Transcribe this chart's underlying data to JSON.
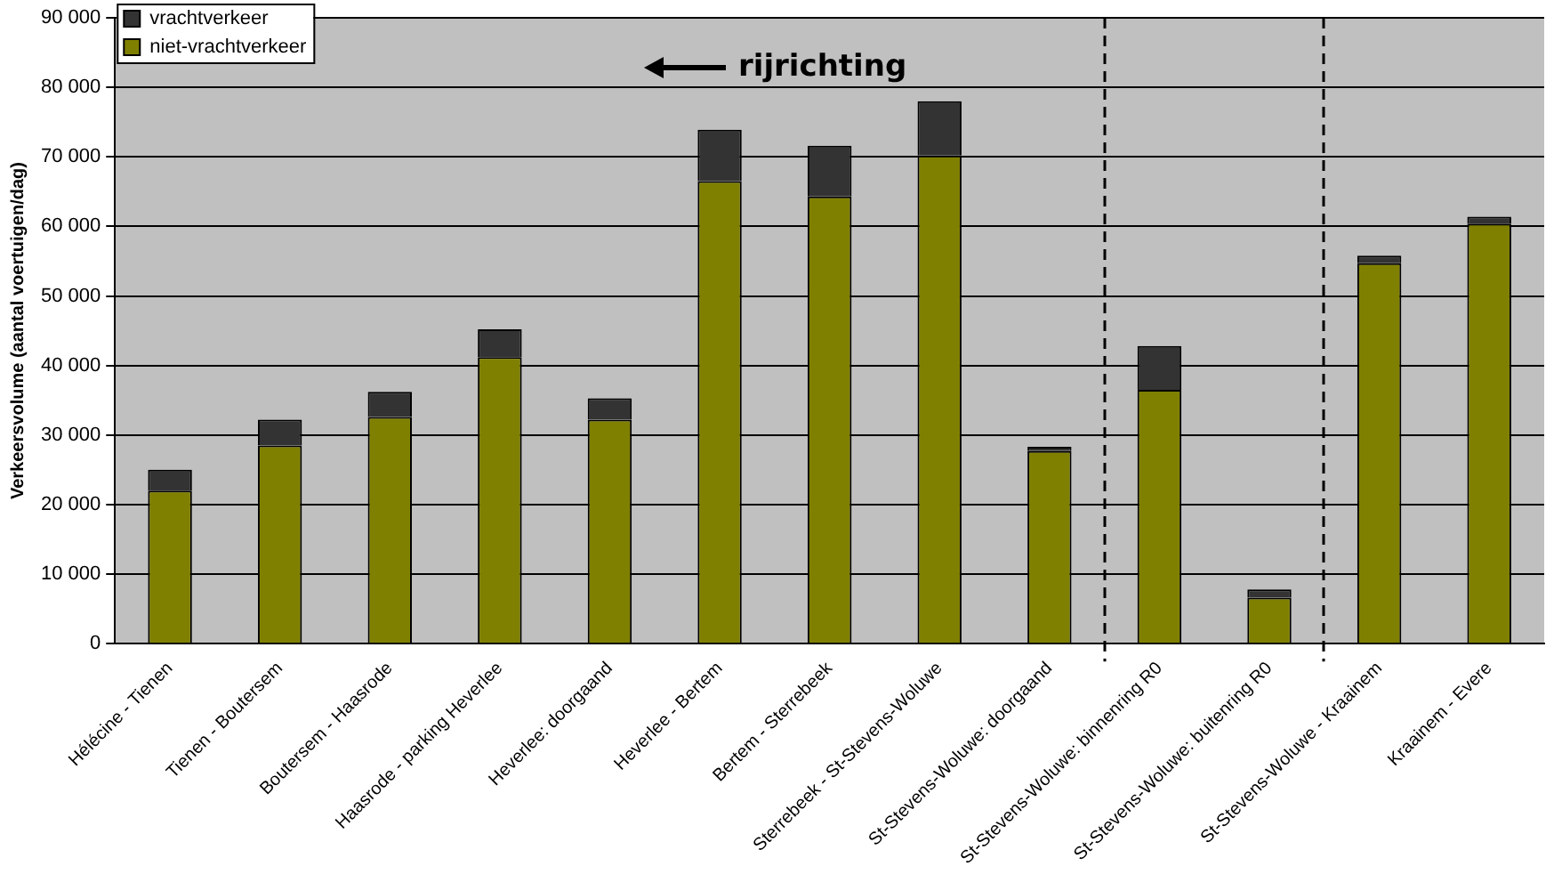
{
  "chart_data": {
    "type": "bar",
    "stacked": true,
    "ylabel": "Verkeersvolume (aantal voertuigen/dag)",
    "categories": [
      "Hélécine - Tienen",
      "Tienen - Boutersem",
      "Boutersem - Haasrode",
      "Haasrode - parking Heverlee",
      "Heverlee: doorgaand",
      "Heverlee - Bertem",
      "Bertem - Sterrebeek",
      "Sterrebeek - St-Stevens-Woluwe",
      "St-Stevens-Woluwe: doorgaand",
      "St-Stevens-Woluwe: binnenring R0",
      "St-Stevens-Woluwe: buitenring R0",
      "St-Stevens-Woluwe - Kraainem",
      "Kraainem - Evere"
    ],
    "series": [
      {
        "name": "niet-vrachtverkeer",
        "color": "#808000",
        "values": [
          22000,
          28500,
          32600,
          41200,
          32200,
          66500,
          64300,
          70200,
          27700,
          36500,
          6600,
          54700,
          60400
        ]
      },
      {
        "name": "vrachtverkeer",
        "color": "#333333",
        "values": [
          3000,
          3700,
          3600,
          4000,
          3100,
          7400,
          7300,
          7800,
          600,
          6300,
          1200,
          1100,
          1000
        ]
      }
    ],
    "ylim": [
      0,
      90000
    ],
    "yticks": [
      {
        "value": 0,
        "label": "0"
      },
      {
        "value": 10000,
        "label": "10 000"
      },
      {
        "value": 20000,
        "label": "20 000"
      },
      {
        "value": 30000,
        "label": "30 000"
      },
      {
        "value": 40000,
        "label": "40 000"
      },
      {
        "value": 50000,
        "label": "50 000"
      },
      {
        "value": 60000,
        "label": "60 000"
      },
      {
        "value": 70000,
        "label": "70 000"
      },
      {
        "value": 80000,
        "label": "80 000"
      },
      {
        "value": 90000,
        "label": "90 000"
      }
    ],
    "grid": "y",
    "legend": "top left",
    "annotations": [
      "rijrichting"
    ]
  }
}
